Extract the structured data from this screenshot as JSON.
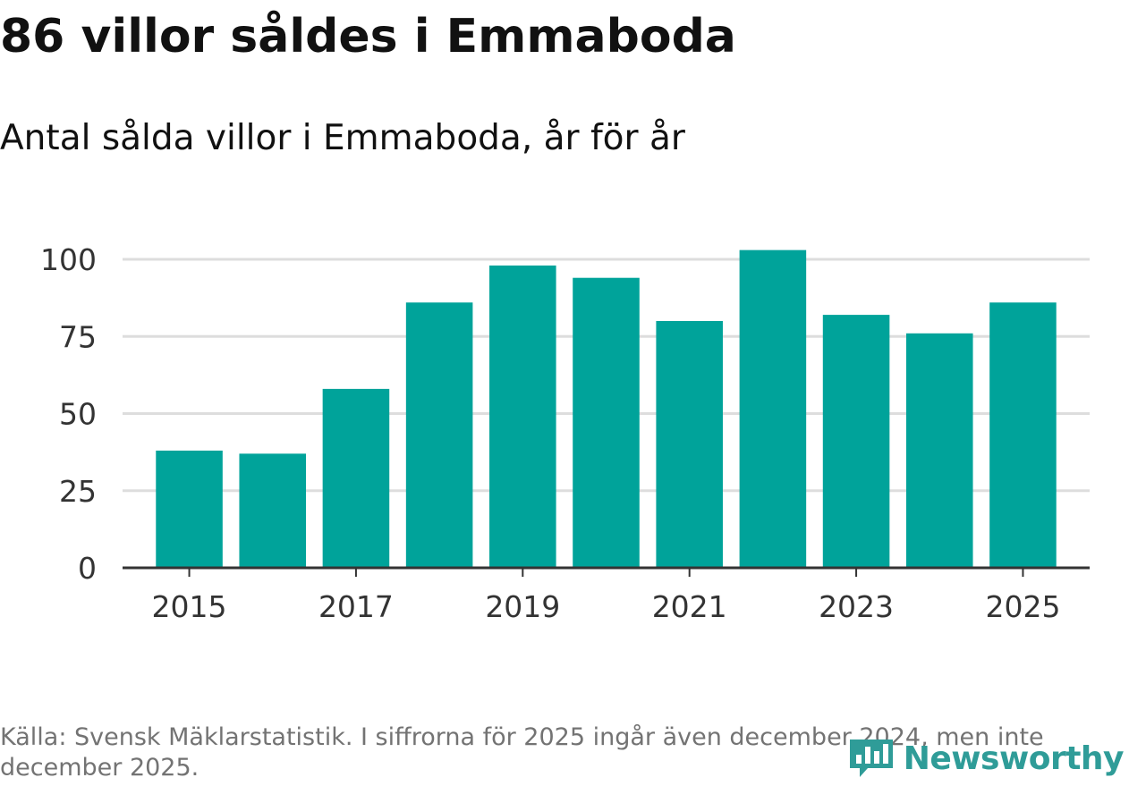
{
  "title": "86 villor såldes i Emmaboda",
  "subtitle": "Antal sålda villor i Emmaboda, år för år",
  "footer": "Källa: Svensk Mäklarstatistik. I siffrorna för 2025 ingår även december 2024, men inte december 2025.",
  "logo": "Newsworthy",
  "colors": {
    "bar": "#00a39a",
    "grid": "#dddddd",
    "axis": "#333333",
    "logo": "#2f9c98"
  },
  "chart_data": {
    "type": "bar",
    "title": "86 villor såldes i Emmaboda",
    "subtitle": "Antal sålda villor i Emmaboda, år för år",
    "categories": [
      "2015",
      "2016",
      "2017",
      "2018",
      "2019",
      "2020",
      "2021",
      "2022",
      "2023",
      "2024",
      "2025"
    ],
    "values": [
      38,
      37,
      58,
      86,
      98,
      94,
      80,
      103,
      82,
      76,
      86
    ],
    "x_tick_labels": [
      "2015",
      "2017",
      "2019",
      "2021",
      "2023",
      "2025"
    ],
    "y_ticks": [
      0,
      25,
      50,
      75,
      100
    ],
    "ylim": [
      0,
      103
    ],
    "xlabel": "",
    "ylabel": "",
    "grid": true
  }
}
